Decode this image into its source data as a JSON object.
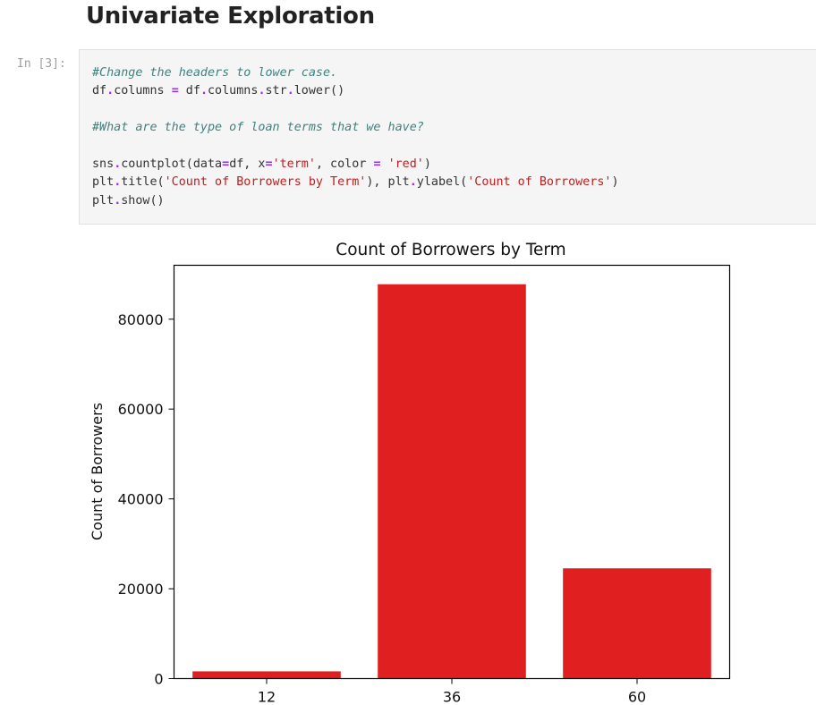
{
  "notebook": {
    "heading": "Univariate Exploration",
    "cell_prompt": "In [3]:",
    "code_lines": [
      {
        "kind": "comment",
        "text": "#Change the headers to lower case."
      },
      {
        "kind": "code",
        "parts": [
          {
            "t": "df",
            "c": ""
          },
          {
            "t": ".",
            "c": "op"
          },
          {
            "t": "columns ",
            "c": ""
          },
          {
            "t": "=",
            "c": "op"
          },
          {
            "t": " df",
            "c": ""
          },
          {
            "t": ".",
            "c": "op"
          },
          {
            "t": "columns",
            "c": ""
          },
          {
            "t": ".",
            "c": "op"
          },
          {
            "t": "str",
            "c": ""
          },
          {
            "t": ".",
            "c": "op"
          },
          {
            "t": "lower()",
            "c": ""
          }
        ]
      },
      {
        "kind": "blank",
        "text": ""
      },
      {
        "kind": "comment",
        "text": "#What are the type of loan terms that we have?"
      },
      {
        "kind": "blank",
        "text": ""
      },
      {
        "kind": "code",
        "parts": [
          {
            "t": "sns",
            "c": ""
          },
          {
            "t": ".",
            "c": "op"
          },
          {
            "t": "countplot(data",
            "c": ""
          },
          {
            "t": "=",
            "c": "op"
          },
          {
            "t": "df, x",
            "c": ""
          },
          {
            "t": "=",
            "c": "op"
          },
          {
            "t": "'term'",
            "c": "st"
          },
          {
            "t": ", color ",
            "c": ""
          },
          {
            "t": "=",
            "c": "op"
          },
          {
            "t": " ",
            "c": ""
          },
          {
            "t": "'red'",
            "c": "st"
          },
          {
            "t": ")",
            "c": ""
          }
        ]
      },
      {
        "kind": "code",
        "parts": [
          {
            "t": "plt",
            "c": ""
          },
          {
            "t": ".",
            "c": "op"
          },
          {
            "t": "title(",
            "c": ""
          },
          {
            "t": "'Count of Borrowers by Term'",
            "c": "st"
          },
          {
            "t": "), plt",
            "c": ""
          },
          {
            "t": ".",
            "c": "op"
          },
          {
            "t": "ylabel(",
            "c": ""
          },
          {
            "t": "'Count of Borrowers'",
            "c": "st"
          },
          {
            "t": ")",
            "c": ""
          }
        ]
      },
      {
        "kind": "code",
        "parts": [
          {
            "t": "plt",
            "c": ""
          },
          {
            "t": ".",
            "c": "op"
          },
          {
            "t": "show()",
            "c": ""
          }
        ]
      }
    ]
  },
  "chart_data": {
    "type": "bar",
    "title": "Count of Borrowers by Term",
    "xlabel": "",
    "ylabel": "Count of Borrowers",
    "categories": [
      "12",
      "36",
      "60"
    ],
    "values": [
      1614,
      87778,
      24545
    ],
    "ylim": [
      0,
      92000
    ],
    "yticks": [
      0,
      20000,
      40000,
      60000,
      80000
    ],
    "bar_color": "#e02020",
    "grid": false
  }
}
